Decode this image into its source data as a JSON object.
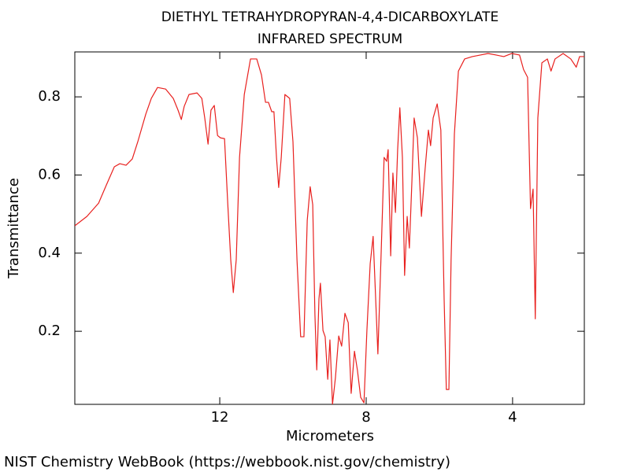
{
  "chart_data": {
    "type": "line",
    "title": "DIETHYL TETRAHYDROPYRAN-4,4-DICARBOXYLATE",
    "subtitle": "INFRARED SPECTRUM",
    "x_label": "Micrometers",
    "y_label": "Transmittance",
    "credit": "NIST Chemistry WebBook (https://webbook.nist.gov/chemistry)",
    "color": "#e8201e",
    "xlim": [
      15.96,
      2.04
    ],
    "ylim": [
      0.013,
      0.915
    ],
    "xticks": [
      12,
      8,
      4
    ],
    "yticks": [
      0.2,
      0.4,
      0.6,
      0.8
    ],
    "x": [
      15.96,
      15.63,
      15.31,
      15.1,
      14.88,
      14.73,
      14.56,
      14.39,
      14.24,
      14.02,
      13.87,
      13.7,
      13.48,
      13.27,
      13.14,
      13.05,
      12.97,
      12.84,
      12.62,
      12.49,
      12.41,
      12.32,
      12.24,
      12.15,
      12.06,
      11.98,
      11.87,
      11.78,
      11.7,
      11.63,
      11.55,
      11.46,
      11.33,
      11.16,
      10.99,
      10.86,
      10.75,
      10.67,
      10.58,
      10.52,
      10.45,
      10.39,
      10.32,
      10.22,
      10.09,
      10.0,
      9.89,
      9.79,
      9.7,
      9.61,
      9.53,
      9.46,
      9.4,
      9.35,
      9.29,
      9.25,
      9.18,
      9.12,
      9.05,
      8.99,
      8.92,
      8.84,
      8.75,
      8.67,
      8.58,
      8.49,
      8.41,
      8.32,
      8.24,
      8.15,
      8.06,
      7.98,
      7.89,
      7.81,
      7.74,
      7.68,
      7.59,
      7.51,
      7.44,
      7.4,
      7.33,
      7.27,
      7.2,
      7.14,
      7.08,
      7.01,
      6.95,
      6.88,
      6.82,
      6.75,
      6.69,
      6.6,
      6.49,
      6.39,
      6.3,
      6.24,
      6.17,
      6.06,
      5.96,
      5.87,
      5.81,
      5.74,
      5.68,
      5.59,
      5.48,
      5.31,
      5.1,
      4.88,
      4.67,
      4.45,
      4.24,
      4.02,
      3.81,
      3.7,
      3.59,
      3.51,
      3.44,
      3.38,
      3.31,
      3.2,
      3.05,
      2.95,
      2.84,
      2.62,
      2.41,
      2.26,
      2.17,
      2.04
    ],
    "values": [
      0.47,
      0.494,
      0.528,
      0.574,
      0.621,
      0.629,
      0.625,
      0.641,
      0.685,
      0.756,
      0.796,
      0.824,
      0.82,
      0.796,
      0.766,
      0.742,
      0.776,
      0.806,
      0.81,
      0.796,
      0.746,
      0.679,
      0.766,
      0.778,
      0.701,
      0.695,
      0.693,
      0.524,
      0.383,
      0.299,
      0.383,
      0.645,
      0.806,
      0.897,
      0.897,
      0.856,
      0.786,
      0.786,
      0.762,
      0.762,
      0.645,
      0.568,
      0.645,
      0.806,
      0.796,
      0.685,
      0.383,
      0.186,
      0.186,
      0.484,
      0.57,
      0.524,
      0.242,
      0.101,
      0.283,
      0.323,
      0.202,
      0.186,
      0.077,
      0.178,
      0.013,
      0.081,
      0.188,
      0.162,
      0.246,
      0.222,
      0.041,
      0.149,
      0.101,
      0.031,
      0.017,
      0.202,
      0.373,
      0.443,
      0.282,
      0.142,
      0.403,
      0.645,
      0.635,
      0.665,
      0.393,
      0.605,
      0.504,
      0.665,
      0.772,
      0.645,
      0.343,
      0.494,
      0.413,
      0.585,
      0.746,
      0.695,
      0.494,
      0.615,
      0.715,
      0.675,
      0.746,
      0.782,
      0.715,
      0.282,
      0.051,
      0.051,
      0.383,
      0.705,
      0.866,
      0.897,
      0.903,
      0.907,
      0.911,
      0.907,
      0.903,
      0.911,
      0.907,
      0.87,
      0.85,
      0.514,
      0.564,
      0.232,
      0.746,
      0.887,
      0.897,
      0.866,
      0.897,
      0.911,
      0.897,
      0.876,
      0.903,
      0.903
    ]
  }
}
